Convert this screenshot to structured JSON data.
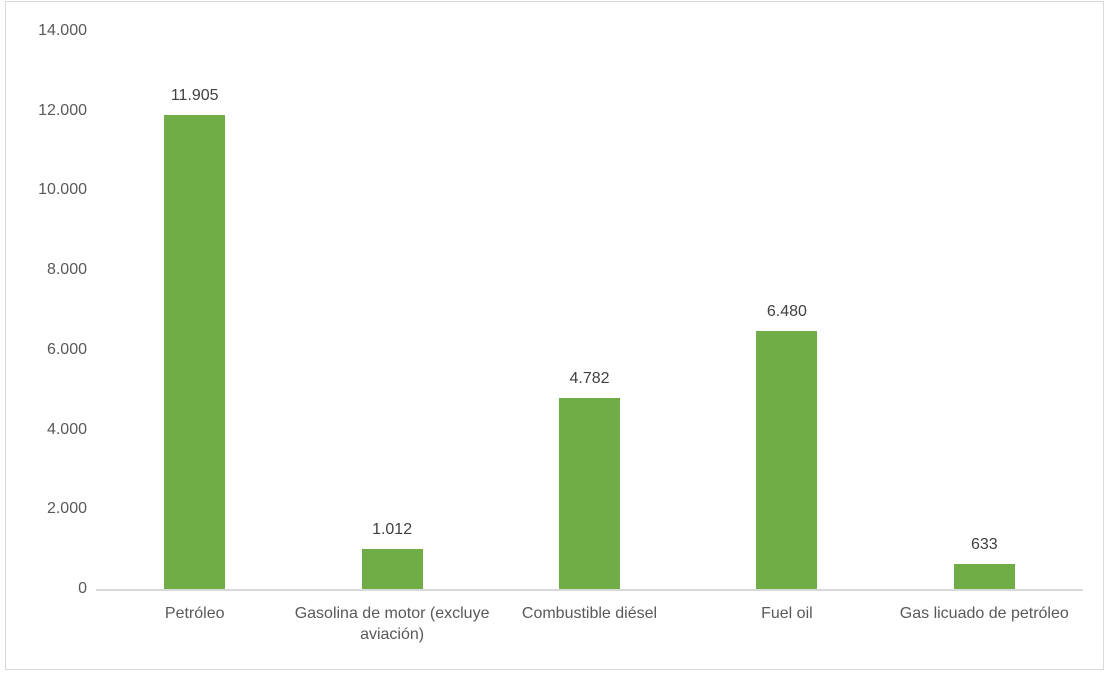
{
  "chart_data": {
    "type": "bar",
    "categories": [
      "Petróleo",
      "Gasolina de motor (excluye aviación)",
      "Combustible diésel",
      "Fuel oil",
      "Gas licuado de petróleo"
    ],
    "values": [
      11905,
      1012,
      4782,
      6480,
      633
    ],
    "data_labels": [
      "11.905",
      "1.012",
      "4.782",
      "6.480",
      "633"
    ],
    "title": "",
    "xlabel": "",
    "ylabel": "",
    "ylim": [
      0,
      14000
    ],
    "ytick_interval": 2000,
    "ytick_labels": [
      "0",
      "2.000",
      "4.000",
      "6.000",
      "8.000",
      "10.000",
      "12.000",
      "14.000"
    ],
    "grid": false,
    "legend": false,
    "bar_color": "#70AD47",
    "axis_line_color": "#D9D9D9",
    "frame_border_color": "#D9D9D9",
    "tick_label_color": "#595959",
    "category_label_color": "#595959",
    "data_label_color": "#404040"
  }
}
